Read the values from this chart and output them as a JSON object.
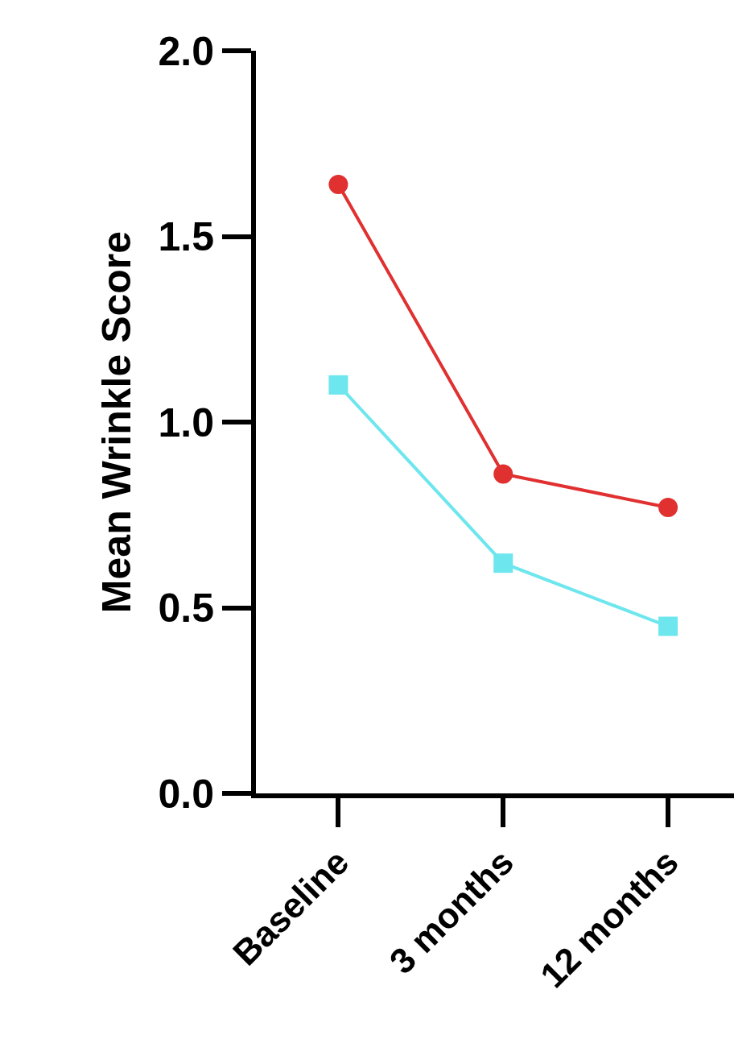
{
  "chart_data": {
    "type": "line",
    "ylabel": "Mean Wrinkle Score",
    "categories": [
      "Baseline",
      "3 months",
      "12 months"
    ],
    "series": [
      {
        "color": "#e03030",
        "values": [
          1.64,
          0.86,
          0.77
        ],
        "marker": "circle"
      },
      {
        "color": "#6ee6ee",
        "values": [
          1.1,
          0.62,
          0.45
        ],
        "marker": "square"
      }
    ],
    "ylim": [
      0,
      2.0
    ],
    "yticks": [
      {
        "value": 0,
        "label": "0.0"
      },
      {
        "value": 0.5,
        "label": "0.5"
      },
      {
        "value": 1.0,
        "label": "1.0"
      },
      {
        "value": 1.5,
        "label": "1.5"
      },
      {
        "value": 2.0,
        "label": "2.0"
      }
    ],
    "legend": false,
    "line_style": "solid"
  }
}
